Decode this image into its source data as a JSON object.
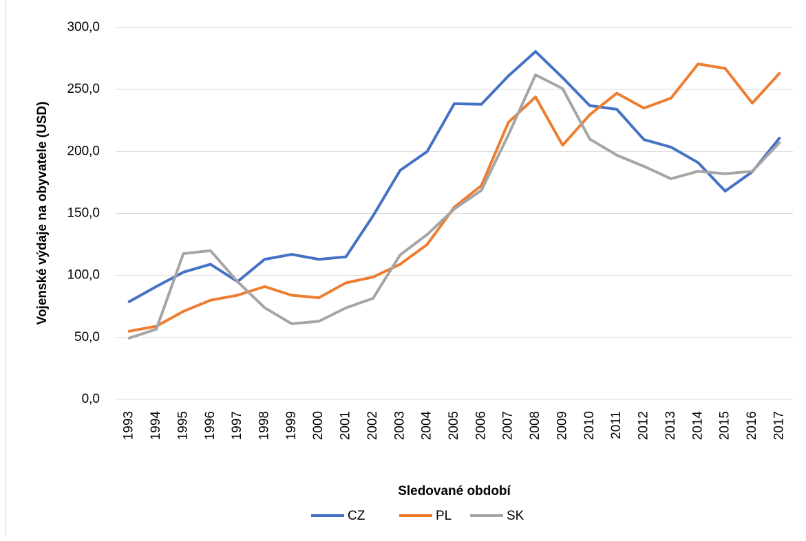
{
  "chart_data": {
    "type": "line",
    "y_label": "Vojenské výdaje na obyvatele (USD)",
    "x_label": "Sledované období",
    "categories": [
      "1993",
      "1994",
      "1995",
      "1996",
      "1997",
      "1998",
      "1999",
      "2000",
      "2001",
      "2002",
      "2003",
      "2004",
      "2005",
      "2006",
      "2007",
      "2008",
      "2009",
      "2010",
      "2011",
      "2012",
      "2013",
      "2014",
      "2015",
      "2016",
      "2017"
    ],
    "series": [
      {
        "name": "CZ",
        "color": "#4472c4",
        "values": [
          78.8,
          91,
          102.6,
          109,
          95,
          113,
          117,
          113,
          115,
          148,
          184.7,
          200,
          238.5,
          238,
          261,
          280.6,
          259.5,
          237,
          234,
          209.6,
          203.5,
          191,
          168,
          183.6,
          210.7
        ]
      },
      {
        "name": "PL",
        "color": "#ed7d31",
        "values": [
          55,
          59,
          71,
          80,
          84,
          91,
          84,
          82,
          94,
          98.7,
          109,
          125,
          155,
          172.5,
          223.5,
          244,
          205,
          229.6,
          247,
          235,
          243,
          270.6,
          267,
          239,
          263
        ]
      },
      {
        "name": "SK",
        "color": "#a5a5a5",
        "values": [
          49.5,
          56.6,
          117.6,
          120,
          95,
          74,
          61,
          63,
          73.8,
          81.5,
          116.5,
          133,
          153.6,
          168.6,
          213.5,
          261.8,
          250.7,
          210,
          197,
          188,
          178,
          184,
          182,
          184,
          207
        ]
      }
    ],
    "ylim": [
      0,
      300
    ],
    "yticks": [
      {
        "value": 0,
        "label": "0,0"
      },
      {
        "value": 50,
        "label": "50,0"
      },
      {
        "value": 100,
        "label": "100,0"
      },
      {
        "value": 150,
        "label": "150,0"
      },
      {
        "value": 200,
        "label": "200,0"
      },
      {
        "value": 250,
        "label": "250,0"
      },
      {
        "value": 300,
        "label": "300,0"
      }
    ],
    "grid": true,
    "legend": "bottom"
  }
}
